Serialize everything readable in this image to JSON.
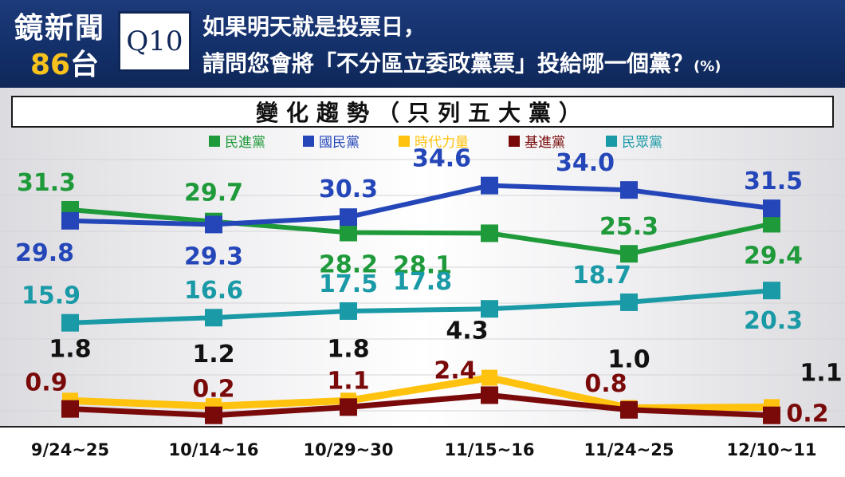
{
  "header": {
    "logo_line1": "鏡新聞",
    "logo_num": "86",
    "logo_tai": "台",
    "q_label": "Q10",
    "question_line1": "如果明天就是投票日，",
    "question_line2": "請問您會將「不分區立委政黨票」投給哪一個黨？",
    "unit": "(%)"
  },
  "chart_data": {
    "type": "line",
    "title": "變化趨勢（只列五大黨）",
    "categories": [
      "9/24~25",
      "10/14~16",
      "10/29~30",
      "11/15~16",
      "11/24~25",
      "12/10~11"
    ],
    "series": [
      {
        "name": "民進黨",
        "color": "#1f9a3a",
        "values": [
          31.3,
          29.7,
          28.2,
          28.1,
          25.3,
          29.4
        ]
      },
      {
        "name": "國民黨",
        "color": "#2446b8",
        "values": [
          29.8,
          29.3,
          30.3,
          34.6,
          34.0,
          31.5
        ]
      },
      {
        "name": "時代力量",
        "color": "#ffc20e",
        "values": [
          1.8,
          1.2,
          1.8,
          4.3,
          1.0,
          1.1
        ]
      },
      {
        "name": "基進黨",
        "color": "#7a0a0a",
        "values": [
          0.9,
          0.2,
          1.1,
          2.4,
          0.8,
          0.2
        ]
      },
      {
        "name": "民眾黨",
        "color": "#1a9aa6",
        "values": [
          15.9,
          16.6,
          17.5,
          17.8,
          18.7,
          20.3
        ]
      }
    ],
    "legend_position": "top",
    "label_colors": {
      "時代力量": "#111111"
    }
  }
}
